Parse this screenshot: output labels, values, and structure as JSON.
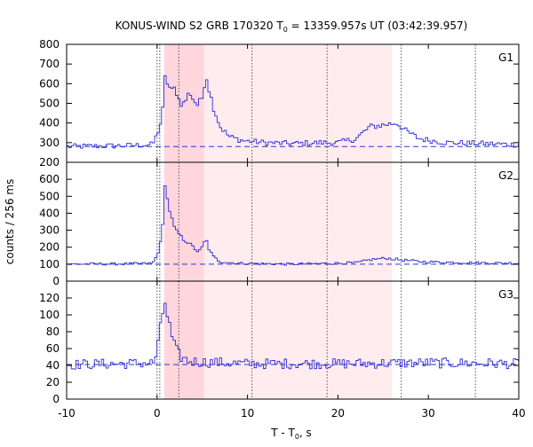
{
  "chart_data": {
    "type": "line",
    "title": {
      "prefix": "KONUS-WIND S2 GRB 170320 T",
      "subscript": "0",
      "suffix": " = 13359.957s UT (03:42:39.957)"
    },
    "xlabel": {
      "prefix": "T - T",
      "subscript": "0",
      "suffix": ", s"
    },
    "ylabel": "counts / 256 ms",
    "xlim": [
      -10,
      40
    ],
    "x_ticks": [
      -10,
      0,
      10,
      20,
      30,
      40
    ],
    "x_tick_labels": [
      "-10",
      "0",
      "10",
      "20",
      "30",
      "40"
    ],
    "bin_width_s": 0.256,
    "colors": {
      "histogram": "#2b2bd6",
      "background_line": "#3333cc",
      "marker_lines": "#444444",
      "shade_dark": "#ffd6dc",
      "shade_light": "#ffecee"
    },
    "intervals": [
      {
        "start": 0.8,
        "end": 5.2,
        "style": "dark"
      },
      {
        "start": 5.2,
        "end": 26.0,
        "style": "light"
      }
    ],
    "vertical_markers": [
      0.0,
      0.3,
      2.4,
      10.5,
      18.8,
      27.0,
      35.2
    ],
    "panels": [
      {
        "label": "G1",
        "ylim": [
          200,
          800
        ],
        "y_ticks": [
          200,
          300,
          400,
          500,
          600,
          700,
          800
        ],
        "y_tick_labels": [
          "200",
          "300",
          "400",
          "500",
          "600",
          "700",
          "800"
        ],
        "background_level": 280,
        "light_curve_keypoints": [
          [
            -10.0,
            280
          ],
          [
            -7.0,
            282
          ],
          [
            -3.0,
            285
          ],
          [
            -0.5,
            290
          ],
          [
            -0.2,
            320
          ],
          [
            0.3,
            380
          ],
          [
            0.6,
            450
          ],
          [
            0.85,
            630
          ],
          [
            1.2,
            600
          ],
          [
            1.6,
            560
          ],
          [
            2.0,
            580
          ],
          [
            2.4,
            520
          ],
          [
            2.8,
            490
          ],
          [
            3.2,
            520
          ],
          [
            3.6,
            560
          ],
          [
            4.0,
            520
          ],
          [
            4.5,
            490
          ],
          [
            5.0,
            530
          ],
          [
            5.4,
            650
          ],
          [
            5.8,
            560
          ],
          [
            6.3,
            470
          ],
          [
            7.0,
            380
          ],
          [
            8.0,
            330
          ],
          [
            9.5,
            310
          ],
          [
            12.0,
            300
          ],
          [
            15.0,
            295
          ],
          [
            18.0,
            300
          ],
          [
            20.0,
            300
          ],
          [
            22.0,
            320
          ],
          [
            23.5,
            380
          ],
          [
            25.0,
            390
          ],
          [
            26.5,
            400
          ],
          [
            27.5,
            360
          ],
          [
            29.0,
            320
          ],
          [
            32.0,
            300
          ],
          [
            36.0,
            295
          ],
          [
            40.0,
            290
          ]
        ],
        "noise_amplitude": 14
      },
      {
        "label": "G2",
        "ylim": [
          0,
          700
        ],
        "y_ticks": [
          0,
          100,
          200,
          300,
          400,
          500,
          600
        ],
        "y_tick_labels": [
          "0",
          "100",
          "200",
          "300",
          "400",
          "500",
          "600"
        ],
        "background_level": 100,
        "light_curve_keypoints": [
          [
            -10.0,
            100
          ],
          [
            -3.0,
            102
          ],
          [
            -0.5,
            105
          ],
          [
            -0.2,
            130
          ],
          [
            0.3,
            200
          ],
          [
            0.6,
            300
          ],
          [
            0.85,
            590
          ],
          [
            1.1,
            490
          ],
          [
            1.5,
            390
          ],
          [
            2.0,
            300
          ],
          [
            2.4,
            280
          ],
          [
            2.8,
            250
          ],
          [
            3.4,
            230
          ],
          [
            4.0,
            200
          ],
          [
            4.6,
            170
          ],
          [
            5.0,
            200
          ],
          [
            5.4,
            250
          ],
          [
            5.8,
            180
          ],
          [
            6.3,
            140
          ],
          [
            7.0,
            115
          ],
          [
            9.0,
            105
          ],
          [
            15.0,
            100
          ],
          [
            22.0,
            108
          ],
          [
            24.0,
            130
          ],
          [
            25.5,
            135
          ],
          [
            27.0,
            125
          ],
          [
            29.0,
            115
          ],
          [
            33.0,
            110
          ],
          [
            40.0,
            105
          ]
        ],
        "noise_amplitude": 7
      },
      {
        "label": "G3",
        "ylim": [
          0,
          140
        ],
        "y_ticks": [
          0,
          20,
          40,
          60,
          80,
          100,
          120
        ],
        "y_tick_labels": [
          "0",
          "20",
          "40",
          "60",
          "80",
          "100",
          "120"
        ],
        "background_level": 41,
        "light_curve_keypoints": [
          [
            -10.0,
            41
          ],
          [
            -4.0,
            42
          ],
          [
            -0.3,
            43
          ],
          [
            0.2,
            70
          ],
          [
            0.6,
            100
          ],
          [
            0.85,
            118
          ],
          [
            1.2,
            95
          ],
          [
            1.6,
            75
          ],
          [
            2.0,
            60
          ],
          [
            2.6,
            50
          ],
          [
            3.5,
            45
          ],
          [
            5.0,
            44
          ],
          [
            10.0,
            42
          ],
          [
            20.0,
            42
          ],
          [
            30.0,
            43
          ],
          [
            40.0,
            42
          ]
        ],
        "noise_amplitude": 6
      }
    ]
  }
}
